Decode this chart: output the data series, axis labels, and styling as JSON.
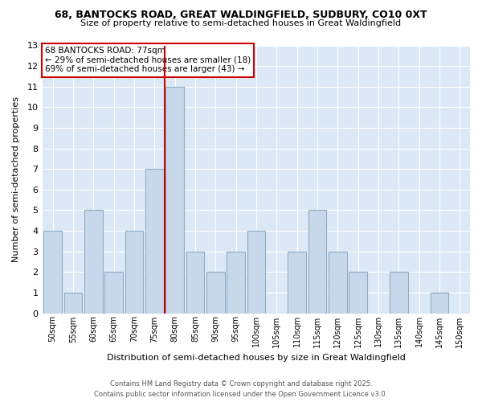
{
  "title_line1": "68, BANTOCKS ROAD, GREAT WALDINGFIELD, SUDBURY, CO10 0XT",
  "title_line2": "Size of property relative to semi-detached houses in Great Waldingfield",
  "xlabel": "Distribution of semi-detached houses by size in Great Waldingfield",
  "ylabel": "Number of semi-detached properties",
  "categories": [
    "50sqm",
    "55sqm",
    "60sqm",
    "65sqm",
    "70sqm",
    "75sqm",
    "80sqm",
    "85sqm",
    "90sqm",
    "95sqm",
    "100sqm",
    "105sqm",
    "110sqm",
    "115sqm",
    "120sqm",
    "125sqm",
    "130sqm",
    "135sqm",
    "140sqm",
    "145sqm",
    "150sqm"
  ],
  "values": [
    4,
    1,
    5,
    2,
    4,
    7,
    11,
    3,
    2,
    3,
    4,
    0,
    3,
    5,
    3,
    2,
    0,
    2,
    0,
    1,
    0
  ],
  "bar_color": "#c8d8eb",
  "bar_edge_color": "#8faec8",
  "highlight_line_color": "#cc0000",
  "ylim": [
    0,
    13
  ],
  "yticks": [
    0,
    1,
    2,
    3,
    4,
    5,
    6,
    7,
    8,
    9,
    10,
    11,
    12,
    13
  ],
  "box_text_line1": "68 BANTOCKS ROAD: 77sqm",
  "box_text_line2": "← 29% of semi-detached houses are smaller (18)",
  "box_text_line3": "69% of semi-detached houses are larger (43) →",
  "box_edge_color": "#cc0000",
  "box_fill_color": "#ffffff",
  "plot_bg_color": "#dce8f5",
  "fig_bg_color": "#ffffff",
  "footer_line1": "Contains HM Land Registry data © Crown copyright and database right 2025.",
  "footer_line2": "Contains public sector information licensed under the Open Government Licence v3.0."
}
